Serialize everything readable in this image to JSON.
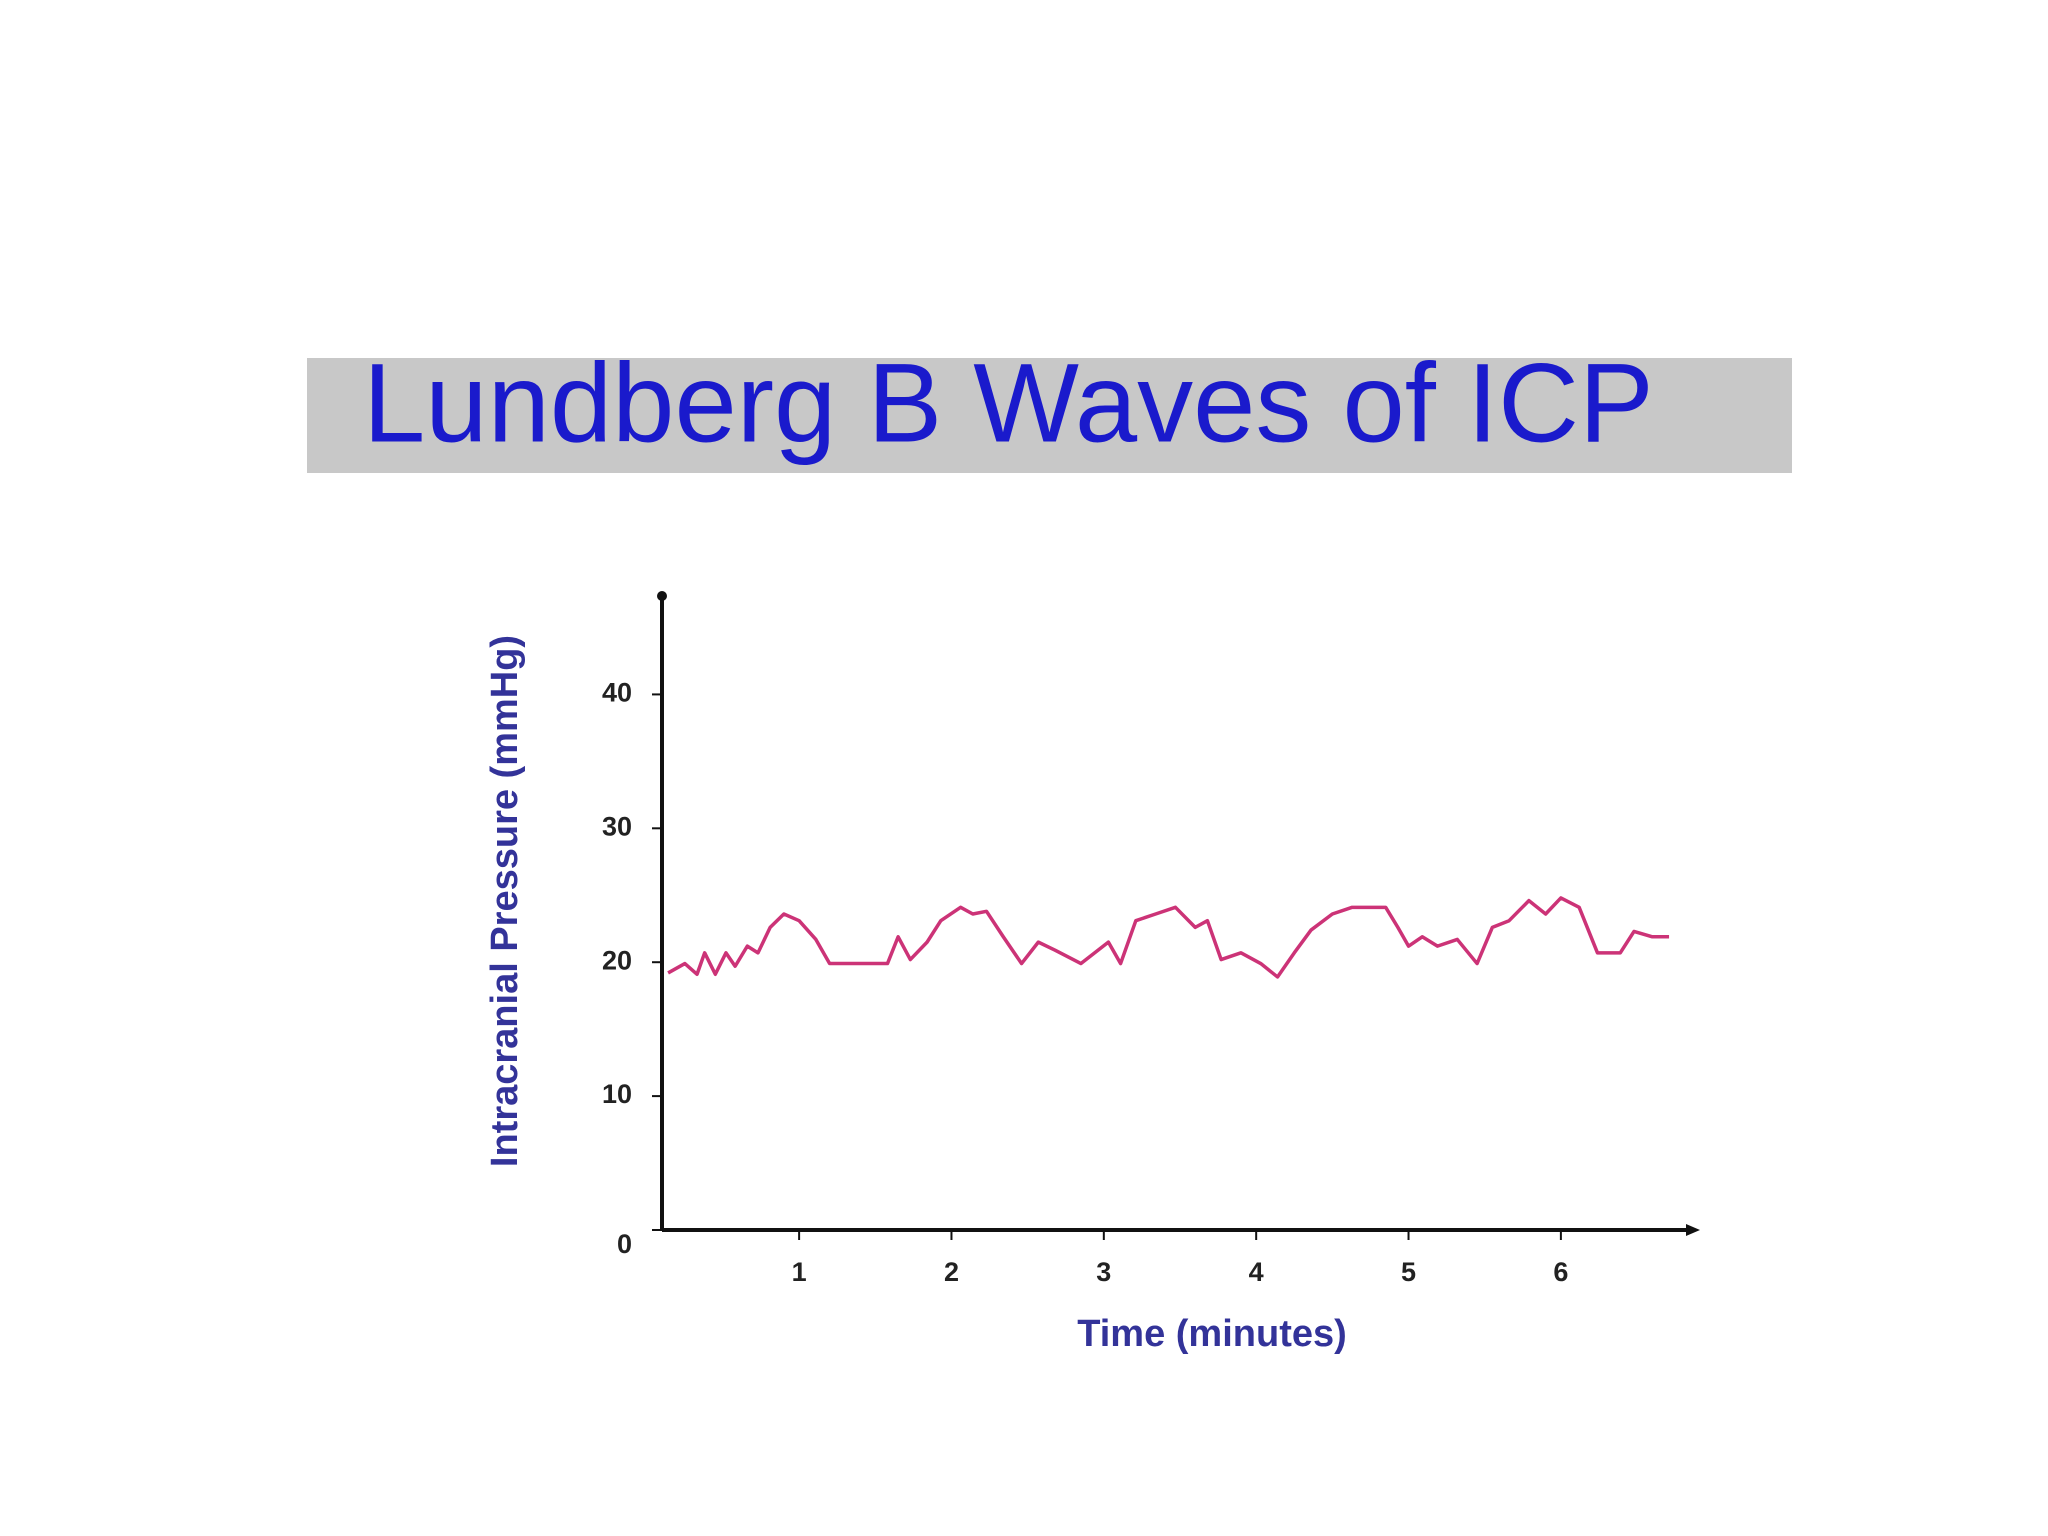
{
  "chart_data": {
    "type": "line",
    "title": "Lundberg B Waves of ICP",
    "x_label": "Time (minutes)",
    "y_label": "Intracranial Pressure (mmHg)",
    "xlim": [
      0.1,
      6.9
    ],
    "xticks": [
      1,
      2,
      3,
      4,
      5,
      6
    ],
    "ylim": [
      0,
      47.5
    ],
    "yticks": [
      0,
      10,
      20,
      30,
      40
    ],
    "x": [
      0.14,
      0.25,
      0.33,
      0.38,
      0.45,
      0.52,
      0.58,
      0.66,
      0.73,
      0.81,
      0.9,
      1.0,
      1.11,
      1.2,
      1.28,
      1.58,
      1.65,
      1.73,
      1.84,
      1.93,
      2.06,
      2.14,
      2.23,
      2.34,
      2.46,
      2.57,
      2.68,
      2.85,
      3.03,
      3.11,
      3.21,
      3.34,
      3.47,
      3.6,
      3.68,
      3.77,
      3.9,
      4.03,
      4.14,
      4.25,
      4.36,
      4.5,
      4.63,
      4.85,
      4.93,
      5.0,
      5.09,
      5.19,
      5.32,
      5.45,
      5.55,
      5.66,
      5.79,
      5.9,
      6.0,
      6.12,
      6.24,
      6.39,
      6.48,
      6.6,
      6.71
    ],
    "series": [
      {
        "name": "ICP",
        "color": "#cc3377",
        "values": [
          19.2,
          19.9,
          19.1,
          20.7,
          19.1,
          20.7,
          19.7,
          21.2,
          20.7,
          22.6,
          23.6,
          23.1,
          21.7,
          19.9,
          19.9,
          19.9,
          21.9,
          20.2,
          21.5,
          23.1,
          24.1,
          23.6,
          23.8,
          21.9,
          19.9,
          21.5,
          20.9,
          19.9,
          21.5,
          19.9,
          23.1,
          23.6,
          24.1,
          22.6,
          23.1,
          20.2,
          20.7,
          19.9,
          18.9,
          20.7,
          22.4,
          23.6,
          24.1,
          24.1,
          22.6,
          21.2,
          21.9,
          21.2,
          21.7,
          19.9,
          22.6,
          23.1,
          24.6,
          23.6,
          24.8,
          24.1,
          20.7,
          20.7,
          22.3,
          21.9,
          21.9
        ]
      }
    ]
  }
}
